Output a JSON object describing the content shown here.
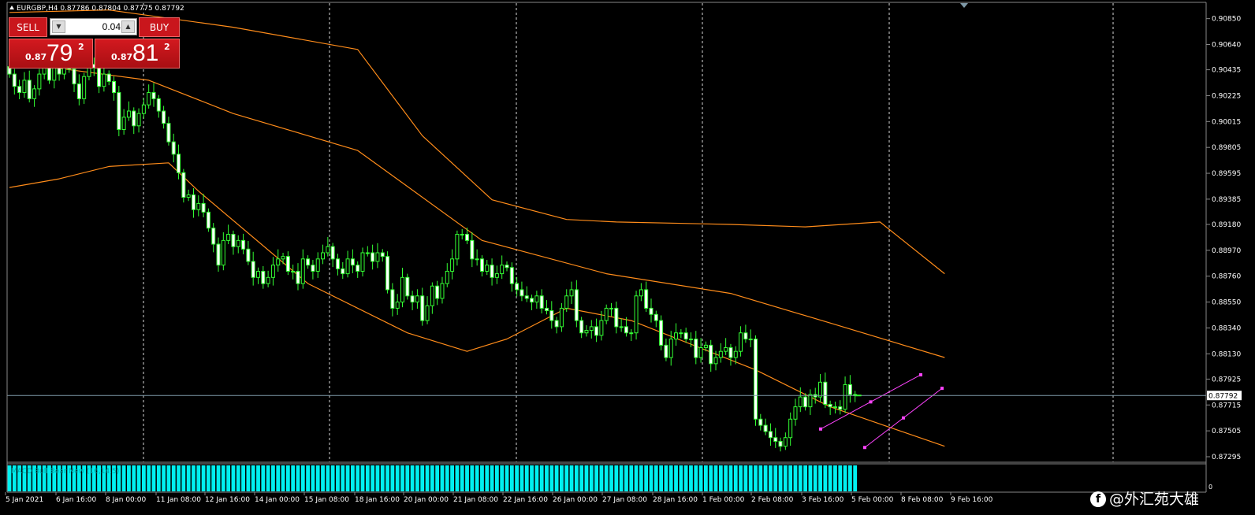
{
  "chart_header": {
    "symbol_info": "EURGBP,H4  0.87786 0.87804 0.87775 0.87792"
  },
  "trade_panel": {
    "sell_label": "SELL",
    "buy_label": "BUY",
    "lot_value": "0.04",
    "sell_quote": {
      "prefix": "0.87",
      "big": "79",
      "sup": "2"
    },
    "buy_quote": {
      "prefix": "0.87",
      "big": "81",
      "sup": "2"
    }
  },
  "indicator": {
    "label": "MACD Bull Bear New (16,14,5)",
    "axis_label": "0"
  },
  "current_price_label": "0.87792",
  "watermark": "@外汇苑大雄",
  "colors": {
    "bull": "#33ff33",
    "bear": "#ffffff",
    "band": "#ff8c1a",
    "grid": "#ffffff",
    "indicator": "#00f0f0",
    "channel": "#ff44ff",
    "price_line": "#7f9aa8"
  },
  "chart_data": {
    "type": "candlestick",
    "symbol": "EURGBP",
    "timeframe": "H4",
    "ylim": [
      0.87295,
      0.9095
    ],
    "y_ticks": [
      "0.90850",
      "0.90640",
      "0.90435",
      "0.90225",
      "0.90015",
      "0.89805",
      "0.89595",
      "0.89385",
      "0.89180",
      "0.88970",
      "0.88760",
      "0.88550",
      "0.88340",
      "0.88130",
      "0.87925",
      "0.87715",
      "0.87505",
      "0.87295"
    ],
    "x_ticks": [
      "5 Jan 2021",
      "6 Jan 16:00",
      "8 Jan 00:00",
      "11 Jan 08:00",
      "12 Jan 16:00",
      "14 Jan 00:00",
      "15 Jan 08:00",
      "18 Jan 16:00",
      "20 Jan 00:00",
      "21 Jan 08:00",
      "22 Jan 16:00",
      "26 Jan 00:00",
      "27 Jan 08:00",
      "28 Jan 16:00",
      "1 Feb 00:00",
      "2 Feb 08:00",
      "3 Feb 16:00",
      "5 Feb 00:00",
      "8 Feb 08:00",
      "9 Feb 16:00"
    ],
    "close_series": [
      0.904,
      0.903,
      0.9025,
      0.9035,
      0.902,
      0.9028,
      0.904,
      0.9045,
      0.9035,
      0.905,
      0.904,
      0.9046,
      0.9044,
      0.9032,
      0.902,
      0.9038,
      0.9048,
      0.9045,
      0.903,
      0.904,
      0.9034,
      0.9025,
      0.8995,
      0.9005,
      0.901,
      0.8998,
      0.9008,
      0.9015,
      0.9025,
      0.902,
      0.901,
      0.9,
      0.8985,
      0.8975,
      0.896,
      0.894,
      0.8942,
      0.893,
      0.8935,
      0.8928,
      0.8915,
      0.8902,
      0.8885,
      0.8905,
      0.891,
      0.89,
      0.8905,
      0.8898,
      0.8888,
      0.8875,
      0.888,
      0.887,
      0.8875,
      0.8885,
      0.889,
      0.8892,
      0.888,
      0.888,
      0.887,
      0.889,
      0.8885,
      0.888,
      0.889,
      0.8895,
      0.89,
      0.889,
      0.8882,
      0.8878,
      0.889,
      0.8885,
      0.888,
      0.8895,
      0.8895,
      0.8888,
      0.8895,
      0.8892,
      0.8865,
      0.885,
      0.8855,
      0.8875,
      0.886,
      0.8855,
      0.886,
      0.884,
      0.8852,
      0.8868,
      0.8858,
      0.887,
      0.888,
      0.889,
      0.891,
      0.891,
      0.8905,
      0.889,
      0.889,
      0.888,
      0.8885,
      0.8875,
      0.8878,
      0.8885,
      0.8883,
      0.887,
      0.8865,
      0.886,
      0.8858,
      0.8855,
      0.886,
      0.885,
      0.8848,
      0.884,
      0.8835,
      0.885,
      0.886,
      0.8865,
      0.884,
      0.883,
      0.8832,
      0.8835,
      0.8828,
      0.884,
      0.885,
      0.885,
      0.8835,
      0.8835,
      0.883,
      0.883,
      0.886,
      0.8865,
      0.885,
      0.8845,
      0.884,
      0.882,
      0.881,
      0.8825,
      0.883,
      0.883,
      0.8825,
      0.8825,
      0.881,
      0.8818,
      0.882,
      0.8805,
      0.881,
      0.8815,
      0.8818,
      0.881,
      0.8815,
      0.883,
      0.8825,
      0.8825,
      0.876,
      0.8755,
      0.875,
      0.8745,
      0.8742,
      0.8738,
      0.8745,
      0.876,
      0.877,
      0.8778,
      0.877,
      0.878,
      0.8778,
      0.879,
      0.8772,
      0.877,
      0.877,
      0.8768,
      0.8788,
      0.878,
      0.87792
    ],
    "bands": {
      "upper": [
        [
          0,
          0.909
        ],
        [
          20,
          0.9092
        ],
        [
          45,
          0.9078
        ],
        [
          70,
          0.906
        ],
        [
          83,
          0.899
        ],
        [
          97,
          0.8938
        ],
        [
          112,
          0.8922
        ],
        [
          122,
          0.892
        ],
        [
          145,
          0.8918
        ],
        [
          160,
          0.8916
        ],
        [
          175,
          0.892
        ],
        [
          188,
          0.8878
        ]
      ],
      "middle": [
        [
          0,
          0.905
        ],
        [
          28,
          0.9035
        ],
        [
          45,
          0.9008
        ],
        [
          70,
          0.8978
        ],
        [
          95,
          0.8905
        ],
        [
          120,
          0.8878
        ],
        [
          145,
          0.8862
        ],
        [
          165,
          0.8838
        ],
        [
          188,
          0.881
        ]
      ],
      "lower": [
        [
          0,
          0.8948
        ],
        [
          10,
          0.8955
        ],
        [
          20,
          0.8965
        ],
        [
          32,
          0.8968
        ],
        [
          38,
          0.8945
        ],
        [
          60,
          0.887
        ],
        [
          80,
          0.883
        ],
        [
          92,
          0.8815
        ],
        [
          100,
          0.8825
        ],
        [
          112,
          0.885
        ],
        [
          125,
          0.884
        ],
        [
          150,
          0.88
        ],
        [
          165,
          0.877
        ],
        [
          188,
          0.8738
        ]
      ]
    },
    "channel": {
      "upper": [
        [
          1041,
          0.8752
        ],
        [
          1168,
          0.8796
        ]
      ],
      "lower": [
        [
          1097,
          0.8737
        ],
        [
          1195,
          0.8785
        ]
      ]
    },
    "current_price": 0.87792,
    "vertical_grid_at_ticks": [
      "8 Jan 00:00",
      "15 Jan 08:00",
      "22 Jan 16:00",
      "1 Feb 00:00",
      "5 Feb 00:00",
      "9 Feb 16:00"
    ]
  }
}
